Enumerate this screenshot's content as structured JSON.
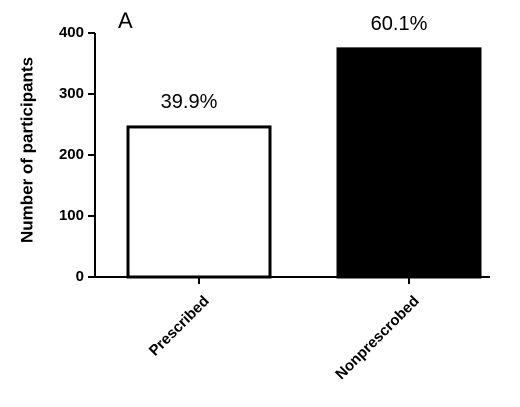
{
  "chart_data": {
    "type": "bar",
    "title": "A",
    "y_label": "Number of participants",
    "categories": [
      "Prescribed",
      "Nonprescrobed"
    ],
    "values": [
      246,
      374
    ],
    "colors": [
      "#ffffff",
      "#000000"
    ],
    "annotations": [
      "39.9%",
      "60.1%"
    ],
    "ylim": [
      0,
      400
    ],
    "yticks": [
      0,
      100,
      200,
      300,
      400
    ],
    "grid": false
  }
}
